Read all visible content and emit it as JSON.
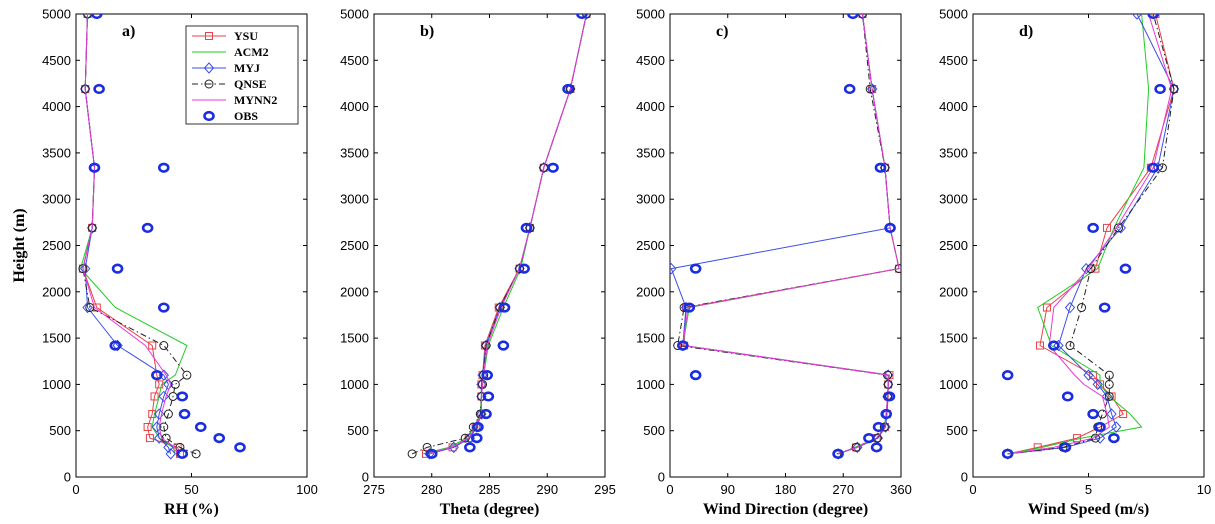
{
  "chart_data": [
    {
      "type": "line",
      "panel_label": "a)",
      "xlabel": "RH (%)",
      "ylabel": "Height (m)",
      "xlim": [
        0,
        100
      ],
      "ylim": [
        0,
        5000
      ],
      "xticks": [
        0,
        50,
        100
      ],
      "yticks": [
        0,
        500,
        1000,
        1500,
        2000,
        2500,
        3000,
        3500,
        4000,
        4500,
        5000
      ],
      "legend": {
        "position": "top-right",
        "entries": [
          "YSU",
          "ACM2",
          "MYJ",
          "QNSE",
          "MYNN2",
          "OBS"
        ]
      },
      "series": [
        {
          "name": "YSU",
          "color": "#e8424a",
          "marker": "square",
          "dash": "solid",
          "x": [
            45,
            44,
            32,
            31,
            33,
            34,
            36,
            35,
            33,
            9,
            3,
            7,
            8,
            4,
            5
          ],
          "y": [
            250,
            320,
            420,
            540,
            680,
            870,
            1000,
            1100,
            1420,
            1830,
            2250,
            2690,
            3340,
            4190,
            5000
          ]
        },
        {
          "name": "ACM2",
          "color": "#22cc22",
          "marker": "none",
          "dash": "solid",
          "x": [
            43,
            42,
            36,
            33,
            34,
            36,
            37,
            43,
            48,
            17,
            2,
            7,
            8,
            4,
            5
          ],
          "y": [
            250,
            320,
            420,
            540,
            680,
            870,
            1000,
            1100,
            1420,
            1830,
            2250,
            2690,
            3340,
            4190,
            5000
          ]
        },
        {
          "name": "MYJ",
          "color": "#3a4ee8",
          "marker": "diamond",
          "dash": "solid",
          "x": [
            41,
            40,
            36,
            35,
            36,
            38,
            40,
            38,
            18,
            5,
            4,
            7,
            8,
            4,
            5
          ],
          "y": [
            250,
            320,
            420,
            540,
            680,
            870,
            1000,
            1100,
            1420,
            1830,
            2250,
            2690,
            3340,
            4190,
            5000
          ]
        },
        {
          "name": "QNSE",
          "color": "#222222",
          "marker": "circle",
          "dash": "dashdot",
          "x": [
            52,
            45,
            39,
            38,
            40,
            42,
            43,
            48,
            38,
            6,
            3,
            7,
            8,
            4,
            5
          ],
          "y": [
            250,
            320,
            420,
            540,
            680,
            870,
            1000,
            1100,
            1420,
            1830,
            2250,
            2690,
            3340,
            4190,
            5000
          ]
        },
        {
          "name": "MYNN2",
          "color": "#e83ad8",
          "marker": "none",
          "dash": "solid",
          "x": [
            44,
            43,
            37,
            36,
            37,
            39,
            41,
            39,
            30,
            8,
            3,
            7,
            8,
            4,
            5
          ],
          "y": [
            250,
            320,
            420,
            540,
            680,
            870,
            1000,
            1100,
            1420,
            1830,
            2250,
            2690,
            3340,
            4190,
            5000
          ]
        },
        {
          "name": "OBS",
          "color": "#1a2ee0",
          "marker": "obs",
          "dash": "none",
          "x": [
            46,
            71,
            62,
            54,
            47,
            46,
            35,
            17,
            38,
            18,
            31,
            38,
            8,
            10,
            9
          ],
          "y": [
            250,
            320,
            420,
            540,
            680,
            870,
            1100,
            1420,
            1830,
            2250,
            2690,
            3340,
            3340,
            4190,
            5000
          ]
        }
      ]
    },
    {
      "type": "line",
      "panel_label": "b)",
      "xlabel": "Theta (degree)",
      "ylabel": "",
      "xlim": [
        275,
        295
      ],
      "ylim": [
        0,
        5000
      ],
      "xticks": [
        275,
        280,
        285,
        290,
        295
      ],
      "yticks": [
        0,
        500,
        1000,
        1500,
        2000,
        2500,
        3000,
        3500,
        4000,
        4500,
        5000
      ],
      "series": [
        {
          "name": "YSU",
          "color": "#e8424a",
          "marker": "square",
          "dash": "solid",
          "x": [
            279.5,
            281.8,
            283.2,
            283.8,
            284.3,
            284.3,
            284.3,
            284.4,
            284.6,
            285.8,
            287.6,
            288.5,
            289.7,
            292.0,
            293.4
          ],
          "y": [
            250,
            320,
            420,
            540,
            680,
            870,
            1000,
            1100,
            1420,
            1830,
            2250,
            2690,
            3340,
            4190,
            5000
          ]
        },
        {
          "name": "ACM2",
          "color": "#22cc22",
          "marker": "none",
          "dash": "solid",
          "x": [
            279.2,
            281.5,
            283.0,
            283.7,
            284.2,
            284.3,
            284.4,
            284.5,
            284.9,
            286.2,
            287.7,
            288.5,
            289.7,
            292.0,
            293.4
          ],
          "y": [
            250,
            320,
            420,
            540,
            680,
            870,
            1000,
            1100,
            1420,
            1830,
            2250,
            2690,
            3340,
            4190,
            5000
          ]
        },
        {
          "name": "MYJ",
          "color": "#3a4ee8",
          "marker": "diamond",
          "dash": "solid",
          "x": [
            279.8,
            281.9,
            283.3,
            283.9,
            284.3,
            284.3,
            284.3,
            284.4,
            284.7,
            285.9,
            287.6,
            288.5,
            289.7,
            292.0,
            293.4
          ],
          "y": [
            250,
            320,
            420,
            540,
            680,
            870,
            1000,
            1100,
            1420,
            1830,
            2250,
            2690,
            3340,
            4190,
            5000
          ]
        },
        {
          "name": "QNSE",
          "color": "#222222",
          "marker": "circle",
          "dash": "dashdot",
          "x": [
            278.3,
            279.6,
            282.9,
            283.6,
            284.2,
            284.3,
            284.4,
            284.5,
            284.7,
            285.9,
            287.6,
            288.5,
            289.7,
            292.0,
            293.4
          ],
          "y": [
            250,
            320,
            420,
            540,
            680,
            870,
            1000,
            1100,
            1420,
            1830,
            2250,
            2690,
            3340,
            4190,
            5000
          ]
        },
        {
          "name": "MYNN2",
          "color": "#e83ad8",
          "marker": "none",
          "dash": "solid",
          "x": [
            279.6,
            281.7,
            283.2,
            283.8,
            284.3,
            284.3,
            284.4,
            284.5,
            284.8,
            286.0,
            287.6,
            288.5,
            289.7,
            292.0,
            293.4
          ],
          "y": [
            250,
            320,
            420,
            540,
            680,
            870,
            1000,
            1100,
            1420,
            1830,
            2250,
            2690,
            3340,
            4190,
            5000
          ]
        },
        {
          "name": "OBS",
          "color": "#1a2ee0",
          "marker": "obs",
          "dash": "none",
          "x": [
            280.0,
            283.3,
            283.9,
            284.0,
            284.7,
            284.9,
            284.8,
            286.2,
            286.3,
            288.0,
            288.2,
            290.5,
            291.8,
            293.0
          ],
          "y": [
            250,
            320,
            420,
            540,
            680,
            870,
            1100,
            1420,
            1830,
            2250,
            2690,
            3340,
            4190,
            5000
          ]
        }
      ]
    },
    {
      "type": "line",
      "panel_label": "c)",
      "xlabel": "Wind Direction (degree)",
      "ylabel": "",
      "xlim": [
        0,
        360
      ],
      "ylim": [
        0,
        5000
      ],
      "xticks": [
        0,
        90,
        180,
        270,
        360
      ],
      "yticks": [
        0,
        500,
        1000,
        1500,
        2000,
        2500,
        3000,
        3500,
        4000,
        4500,
        5000
      ],
      "series": [
        {
          "name": "YSU",
          "color": "#e8424a",
          "marker": "square",
          "dash": "solid",
          "x": [
            262,
            290,
            322,
            335,
            338,
            340,
            340,
            342,
            22,
            25,
            357,
            343,
            335,
            315,
            300
          ],
          "y": [
            250,
            320,
            420,
            540,
            680,
            870,
            1000,
            1100,
            1420,
            1830,
            2250,
            2690,
            3340,
            4190,
            5000
          ]
        },
        {
          "name": "ACM2",
          "color": "#22cc22",
          "marker": "none",
          "dash": "solid",
          "x": [
            263,
            288,
            322,
            334,
            337,
            339,
            340,
            341,
            20,
            30,
            357,
            343,
            335,
            315,
            300
          ],
          "y": [
            250,
            320,
            420,
            540,
            680,
            870,
            1000,
            1100,
            1420,
            1830,
            2250,
            2690,
            3340,
            4190,
            5000
          ]
        },
        {
          "name": "MYJ",
          "color": "#3a4ee8",
          "marker": "diamond",
          "dash": "solid",
          "x": [
            262,
            292,
            324,
            336,
            338,
            339,
            340,
            340,
            20,
            25,
            2,
            343,
            335,
            315,
            300
          ],
          "y": [
            250,
            320,
            420,
            540,
            680,
            870,
            1000,
            1100,
            1420,
            1830,
            2250,
            2690,
            3340,
            4190,
            5000
          ]
        },
        {
          "name": "QNSE",
          "color": "#222222",
          "marker": "circle",
          "dash": "dashdot",
          "x": [
            260,
            290,
            323,
            334,
            337,
            339,
            340,
            339,
            12,
            22,
            357,
            343,
            335,
            312,
            300
          ],
          "y": [
            250,
            320,
            420,
            540,
            680,
            870,
            1000,
            1100,
            1420,
            1830,
            2250,
            2690,
            3340,
            4190,
            5000
          ]
        },
        {
          "name": "MYNN2",
          "color": "#e83ad8",
          "marker": "none",
          "dash": "solid",
          "x": [
            261,
            291,
            322,
            335,
            337,
            339,
            340,
            340,
            20,
            28,
            357,
            343,
            335,
            315,
            300
          ],
          "y": [
            250,
            320,
            420,
            540,
            680,
            870,
            1000,
            1100,
            1420,
            1830,
            2250,
            2690,
            3340,
            4190,
            5000
          ]
        },
        {
          "name": "OBS",
          "color": "#1a2ee0",
          "marker": "obs",
          "dash": "none",
          "x": [
            262,
            322,
            310,
            325,
            337,
            342,
            40,
            20,
            30,
            40,
            343,
            328,
            280,
            285
          ],
          "y": [
            250,
            320,
            420,
            540,
            680,
            870,
            1100,
            1420,
            1830,
            2250,
            2690,
            3340,
            4190,
            5000
          ]
        }
      ]
    },
    {
      "type": "line",
      "panel_label": "d)",
      "xlabel": "Wind Speed (m/s)",
      "ylabel": "",
      "xlim": [
        0,
        10
      ],
      "ylim": [
        0,
        5000
      ],
      "xticks": [
        0,
        5,
        10
      ],
      "yticks": [
        0,
        500,
        1000,
        1500,
        2000,
        2500,
        3000,
        3500,
        4000,
        4500,
        5000
      ],
      "series": [
        {
          "name": "YSU",
          "color": "#e8424a",
          "marker": "square",
          "dash": "solid",
          "x": [
            1.5,
            2.8,
            4.5,
            5.5,
            6.5,
            6.0,
            5.5,
            5.2,
            2.9,
            3.2,
            5.3,
            5.8,
            7.7,
            8.7,
            7.9
          ],
          "y": [
            250,
            320,
            420,
            540,
            680,
            870,
            1000,
            1100,
            1420,
            1830,
            2250,
            2690,
            3340,
            4190,
            5000
          ]
        },
        {
          "name": "ACM2",
          "color": "#22cc22",
          "marker": "none",
          "dash": "solid",
          "x": [
            1.5,
            3.0,
            4.7,
            7.3,
            6.8,
            5.9,
            5.5,
            5.5,
            3.4,
            2.8,
            5.4,
            6.1,
            7.4,
            7.6,
            7.3
          ],
          "y": [
            250,
            320,
            420,
            540,
            680,
            870,
            1000,
            1100,
            1420,
            1830,
            2250,
            2690,
            3340,
            4190,
            5000
          ]
        },
        {
          "name": "MYJ",
          "color": "#3a4ee8",
          "marker": "diamond",
          "dash": "solid",
          "x": [
            1.5,
            4.0,
            5.5,
            6.2,
            6.0,
            5.8,
            5.4,
            5.0,
            3.7,
            4.2,
            4.9,
            6.4,
            8.0,
            8.7,
            7.1
          ],
          "y": [
            250,
            320,
            420,
            540,
            680,
            870,
            1000,
            1100,
            1420,
            1830,
            2250,
            2690,
            3340,
            4190,
            5000
          ]
        },
        {
          "name": "QNSE",
          "color": "#222222",
          "marker": "circle",
          "dash": "dashdot",
          "x": [
            1.5,
            3.9,
            5.3,
            5.4,
            5.6,
            5.9,
            5.9,
            5.9,
            4.2,
            4.7,
            5.1,
            6.3,
            8.2,
            8.7,
            7.8
          ],
          "y": [
            250,
            320,
            420,
            540,
            680,
            870,
            1000,
            1100,
            1420,
            1830,
            2250,
            2690,
            3340,
            4190,
            5000
          ]
        },
        {
          "name": "MYNN2",
          "color": "#e83ad8",
          "marker": "none",
          "dash": "solid",
          "x": [
            1.5,
            3.5,
            5.2,
            5.9,
            5.8,
            5.6,
            4.8,
            4.4,
            3.3,
            3.5,
            5.0,
            6.2,
            7.8,
            8.6,
            7.6
          ],
          "y": [
            250,
            320,
            420,
            540,
            680,
            870,
            1000,
            1100,
            1420,
            1830,
            2250,
            2690,
            3340,
            4190,
            5000
          ]
        },
        {
          "name": "OBS",
          "color": "#1a2ee0",
          "marker": "obs",
          "dash": "none",
          "x": [
            1.5,
            4.0,
            6.1,
            5.5,
            5.2,
            4.1,
            1.5,
            3.5,
            5.7,
            6.6,
            5.2,
            7.8,
            8.1,
            7.8
          ],
          "y": [
            250,
            320,
            420,
            540,
            680,
            870,
            1100,
            1420,
            1830,
            2250,
            2690,
            3340,
            4190,
            5000
          ]
        }
      ]
    }
  ]
}
